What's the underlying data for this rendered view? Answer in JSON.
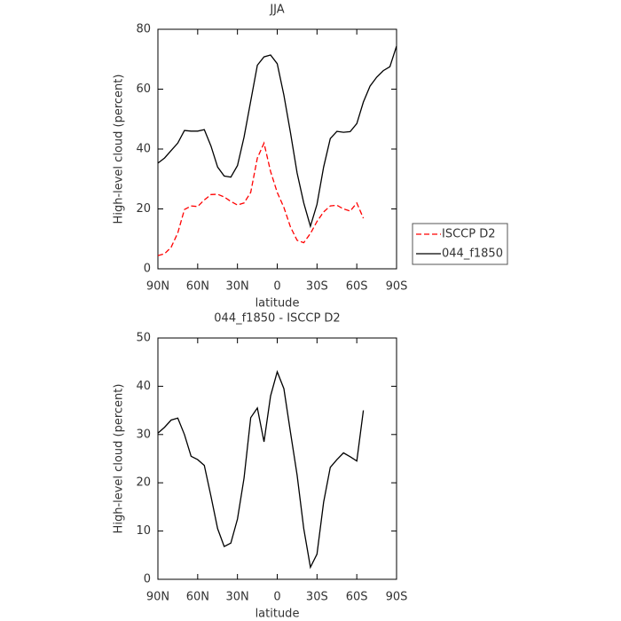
{
  "chart_data": [
    {
      "type": "line",
      "title": "JJA",
      "xlabel": "latitude",
      "ylabel": "High-level cloud (percent)",
      "x": [
        90,
        85,
        80,
        75,
        70,
        65,
        60,
        55,
        50,
        45,
        40,
        35,
        30,
        25,
        20,
        15,
        10,
        5,
        0,
        -5,
        -10,
        -15,
        -20,
        -25,
        -30,
        -35,
        -40,
        -45,
        -50,
        -55,
        -60,
        -65,
        -70,
        -75,
        -80,
        -85,
        -90
      ],
      "series": [
        {
          "name": "ISCCP D2",
          "color": "#ff0000",
          "dashed": true,
          "values": [
            4.4,
            5,
            7.2,
            12,
            19.8,
            21,
            20.8,
            23,
            24.8,
            24.9,
            24,
            22.5,
            21.3,
            22,
            25.5,
            37,
            42,
            32.5,
            25.5,
            20.5,
            14,
            9.5,
            8.7,
            11.8,
            15.8,
            19,
            21,
            21.2,
            20,
            19.3,
            22,
            16.9,
            null,
            null,
            null,
            null,
            null
          ]
        },
        {
          "name": "044_f1850",
          "color": "#000000",
          "dashed": false,
          "values": [
            35.3,
            37,
            39.5,
            42,
            46.2,
            46,
            46,
            46.5,
            41,
            34,
            31,
            30.6,
            34.5,
            44,
            56,
            68,
            70.8,
            71.4,
            68.5,
            58,
            45.5,
            32,
            22,
            14.2,
            21.5,
            34,
            43.5,
            45.9,
            45.6,
            45.8,
            48.5,
            55.7,
            61,
            64,
            66.2,
            67.5,
            74.4
          ]
        }
      ],
      "xlim": [
        90,
        -90
      ],
      "xticks": [
        {
          "value": 90,
          "label": "90N"
        },
        {
          "value": 60,
          "label": "60N"
        },
        {
          "value": 30,
          "label": "30N"
        },
        0,
        {
          "value": -30,
          "label": "30S"
        },
        {
          "value": -60,
          "label": "60S"
        },
        {
          "value": -90,
          "label": "90S"
        }
      ],
      "ylim": [
        0,
        80
      ],
      "yticks": [
        0,
        20,
        40,
        60,
        80
      ],
      "legend": "right"
    },
    {
      "type": "line",
      "title": "044_f1850 - ISCCP D2",
      "xlabel": "latitude",
      "ylabel": "High-level cloud (percent)",
      "x": [
        90,
        85,
        80,
        75,
        70,
        65,
        60,
        55,
        50,
        45,
        40,
        35,
        30,
        25,
        20,
        15,
        10,
        5,
        0,
        -5,
        -10,
        -15,
        -20,
        -25,
        -30,
        -35,
        -40,
        -45,
        -50,
        -55,
        -60,
        -65,
        -70,
        -75,
        -80,
        -85,
        -90
      ],
      "color": "#000000",
      "values": [
        30.3,
        31.5,
        33,
        33.4,
        30,
        25.5,
        24.8,
        23.6,
        17.2,
        10.5,
        6.8,
        7.5,
        12.5,
        21,
        33.5,
        35.5,
        28.5,
        38,
        43,
        39.5,
        30.5,
        21.6,
        10.5,
        2.5,
        5.2,
        16,
        23.2,
        24.8,
        26.2,
        25.4,
        24.5,
        35,
        null,
        null,
        null,
        null,
        null
      ],
      "xlim": [
        90,
        -90
      ],
      "xticks": [
        {
          "value": 90,
          "label": "90N"
        },
        {
          "value": 60,
          "label": "60N"
        },
        {
          "value": 30,
          "label": "30N"
        },
        0,
        {
          "value": -30,
          "label": "30S"
        },
        {
          "value": -60,
          "label": "60S"
        },
        {
          "value": -90,
          "label": "90S"
        }
      ],
      "ylim": [
        0,
        50
      ],
      "yticks": [
        0,
        10,
        20,
        30,
        40,
        50
      ]
    }
  ]
}
